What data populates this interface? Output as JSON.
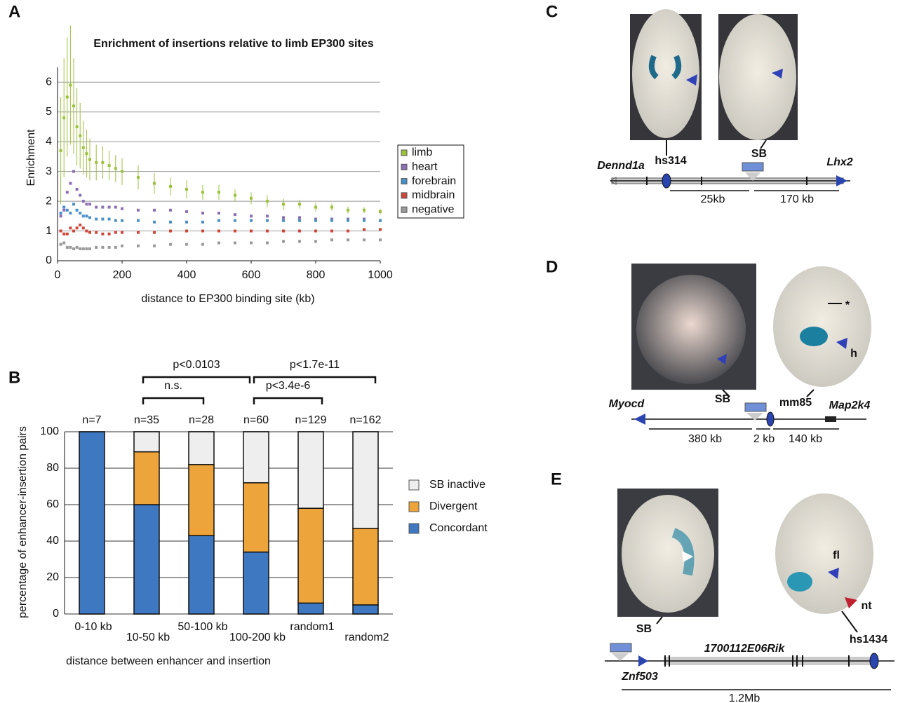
{
  "chart_data": [
    {
      "type": "scatter",
      "title": "Enrichment of insertions relative to limb EP300 sites",
      "xlabel": "distance to EP300 binding site (kb)",
      "ylabel": "Enrichment",
      "x": [
        10,
        20,
        30,
        40,
        50,
        60,
        70,
        80,
        90,
        100,
        120,
        140,
        160,
        180,
        200,
        250,
        300,
        350,
        400,
        450,
        500,
        550,
        600,
        650,
        700,
        750,
        800,
        850,
        900,
        950,
        1000
      ],
      "series": [
        {
          "name": "limb",
          "color": "#9cc23c",
          "values": [
            3.7,
            4.8,
            5.5,
            5.9,
            5.2,
            4.5,
            4.2,
            3.8,
            3.6,
            3.4,
            3.3,
            3.3,
            3.2,
            3.1,
            3.0,
            2.8,
            2.6,
            2.5,
            2.4,
            2.3,
            2.3,
            2.2,
            2.1,
            2.0,
            1.9,
            1.9,
            1.8,
            1.8,
            1.7,
            1.7,
            1.65
          ],
          "errors": [
            1.8,
            2.0,
            2.0,
            2.0,
            1.6,
            1.3,
            1.1,
            0.9,
            0.8,
            0.7,
            0.6,
            0.55,
            0.5,
            0.45,
            0.45,
            0.4,
            0.35,
            0.3,
            0.3,
            0.25,
            0.25,
            0.2,
            0.2,
            0.2,
            0.18,
            0.15,
            0.15,
            0.12,
            0.12,
            0.1,
            0.1
          ]
        },
        {
          "name": "heart",
          "color": "#8a6fb5",
          "values": [
            1.5,
            1.7,
            2.3,
            2.6,
            3.0,
            2.4,
            2.2,
            2.0,
            1.9,
            1.9,
            1.8,
            1.8,
            1.8,
            1.8,
            1.75,
            1.7,
            1.7,
            1.7,
            1.65,
            1.6,
            1.6,
            1.55,
            1.5,
            1.5,
            1.45,
            1.45,
            1.4,
            1.4,
            1.4,
            1.4,
            1.35
          ]
        },
        {
          "name": "forebrain",
          "color": "#4a90c8",
          "values": [
            1.6,
            1.8,
            1.7,
            1.6,
            1.9,
            1.7,
            1.6,
            1.5,
            1.5,
            1.45,
            1.4,
            1.4,
            1.4,
            1.35,
            1.35,
            1.35,
            1.3,
            1.3,
            1.3,
            1.3,
            1.35,
            1.35,
            1.35,
            1.35,
            1.35,
            1.35,
            1.35,
            1.35,
            1.35,
            1.35,
            1.35
          ]
        },
        {
          "name": "midbrain",
          "color": "#d0463a",
          "values": [
            1.0,
            0.9,
            0.9,
            1.1,
            1.0,
            1.1,
            1.2,
            1.1,
            1.0,
            0.95,
            0.95,
            0.9,
            0.9,
            0.95,
            0.95,
            0.95,
            0.95,
            1.0,
            1.0,
            1.0,
            1.0,
            1.0,
            1.0,
            1.0,
            1.0,
            1.0,
            1.0,
            1.0,
            1.0,
            1.05,
            1.05
          ]
        },
        {
          "name": "negative",
          "color": "#9a9a9a",
          "values": [
            0.55,
            0.6,
            0.45,
            0.45,
            0.4,
            0.45,
            0.4,
            0.4,
            0.4,
            0.4,
            0.45,
            0.45,
            0.45,
            0.45,
            0.5,
            0.5,
            0.5,
            0.55,
            0.55,
            0.55,
            0.6,
            0.6,
            0.6,
            0.6,
            0.65,
            0.65,
            0.65,
            0.7,
            0.7,
            0.7,
            0.7
          ]
        }
      ],
      "xlim": [
        0,
        1000
      ],
      "xticks": [
        0,
        200,
        400,
        600,
        800,
        1000
      ],
      "ylim": [
        0,
        6.5
      ],
      "yticks": [
        0,
        1,
        2,
        3,
        4,
        5,
        6
      ],
      "grid": true,
      "legend": "right"
    },
    {
      "type": "bar",
      "stacked": true,
      "xlabel": "distance between enhancer and insertion",
      "ylabel": "percentage of enhancer-insertion pairs",
      "categories": [
        "0-10 kb",
        "10-50 kb",
        "50-100 kb",
        "100-200 kb",
        "random1",
        "random2"
      ],
      "counts": [
        "n=7",
        "n=35",
        "n=28",
        "n=60",
        "n=129",
        "n=162"
      ],
      "series": [
        {
          "name": "Concordant",
          "color": "#3d78c1",
          "values": [
            100,
            60,
            43,
            34,
            6,
            5
          ]
        },
        {
          "name": "Divergent",
          "color": "#eda43a",
          "values": [
            0,
            29,
            39,
            38,
            52,
            42
          ]
        },
        {
          "name": "SB inactive",
          "color": "#eeeeee",
          "values": [
            0,
            11,
            18,
            28,
            42,
            53
          ]
        }
      ],
      "ylim": [
        0,
        100
      ],
      "yticks": [
        0,
        20,
        40,
        60,
        80,
        100
      ],
      "grid": true,
      "legend": "right",
      "annotations": [
        "p<0.0103",
        "n.s.",
        "p<1.7e-11",
        "p<3.4e-6"
      ]
    }
  ],
  "panels": {
    "letters": [
      "A",
      "B",
      "C",
      "D",
      "E"
    ],
    "C": {
      "labels": [
        "Dennd1a",
        "hs314",
        "SB",
        "Lhx2",
        "25kb",
        "170 kb"
      ]
    },
    "D": {
      "labels": [
        "Myocd",
        "SB",
        "mm85",
        "Map2k4",
        "380 kb",
        "2 kb",
        "140 kb",
        "h",
        "*"
      ]
    },
    "E": {
      "labels": [
        "SB",
        "1700112E06Rik",
        "hs1434",
        "Znf503",
        "1.2Mb",
        "fl",
        "nt"
      ]
    }
  }
}
